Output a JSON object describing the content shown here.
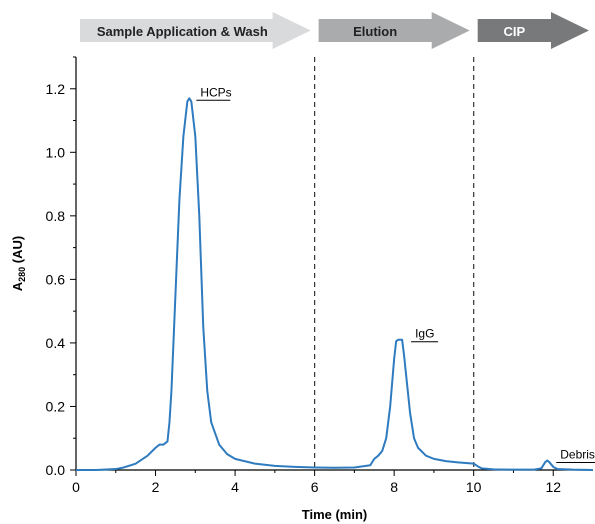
{
  "chart_data": {
    "type": "line",
    "xlabel": "Time (min)",
    "ylabel_main": "A",
    "ylabel_sub": "280",
    "ylabel_unit": " (AU)",
    "xlim": [
      0,
      13
    ],
    "ylim": [
      0,
      1.3
    ],
    "x_ticks": [
      0,
      2,
      4,
      6,
      8,
      10,
      12
    ],
    "x_tick_labels": [
      "0",
      "2",
      "4",
      "6",
      "8",
      "10",
      "12"
    ],
    "y_ticks": [
      0,
      0.2,
      0.4,
      0.6,
      0.8,
      1.0,
      1.2
    ],
    "y_tick_labels": [
      "0.0",
      "0.2",
      "0.4",
      "0.6",
      "0.8",
      "1.0",
      "1.2"
    ],
    "grid": false,
    "line_color": "#2f7bbf",
    "phases": [
      {
        "label": "Sample Application & Wash",
        "x_start": 0,
        "x_end": 6,
        "color": "#d9dadb",
        "text_color": "#222222"
      },
      {
        "label": "Elution",
        "x_start": 6,
        "x_end": 10,
        "color": "#a9abad",
        "text_color": "#222222"
      },
      {
        "label": "CIP",
        "x_start": 10,
        "x_end": 13,
        "color": "#77797b",
        "text_color": "#ffffff"
      }
    ],
    "phase_boundaries": [
      6,
      10
    ],
    "annotations": [
      {
        "text": "HCPs",
        "x": 2.9,
        "y": 1.17
      },
      {
        "text": "IgG",
        "x": 8.3,
        "y": 0.41
      },
      {
        "text": "Debris",
        "x": 11.95,
        "y": 0.03
      }
    ],
    "series": [
      {
        "x": [
          0,
          0.5,
          1.0,
          1.2,
          1.5,
          1.8,
          2.0,
          2.1,
          2.2,
          2.3,
          2.35,
          2.4,
          2.5,
          2.6,
          2.7,
          2.8,
          2.85,
          2.9,
          3.0,
          3.1,
          3.2,
          3.3,
          3.4,
          3.6,
          3.8,
          4.0,
          4.5,
          5.0,
          5.5,
          6.0,
          6.5,
          7.0,
          7.4,
          7.5,
          7.6,
          7.7,
          7.8,
          7.9,
          8.0,
          8.05,
          8.1,
          8.2,
          8.25,
          8.3,
          8.4,
          8.5,
          8.6,
          8.8,
          9.0,
          9.3,
          9.6,
          10.0,
          10.1,
          10.2,
          10.5,
          11.0,
          11.5,
          11.7,
          11.8,
          11.85,
          11.9,
          12.0,
          12.1,
          12.5,
          13.0
        ],
        "y": [
          0.0,
          0.0,
          0.003,
          0.008,
          0.02,
          0.045,
          0.07,
          0.08,
          0.08,
          0.09,
          0.15,
          0.25,
          0.55,
          0.85,
          1.05,
          1.16,
          1.17,
          1.16,
          1.05,
          0.8,
          0.45,
          0.25,
          0.15,
          0.08,
          0.05,
          0.035,
          0.02,
          0.013,
          0.01,
          0.008,
          0.007,
          0.008,
          0.015,
          0.035,
          0.045,
          0.06,
          0.1,
          0.2,
          0.35,
          0.405,
          0.41,
          0.41,
          0.36,
          0.3,
          0.18,
          0.1,
          0.07,
          0.045,
          0.035,
          0.028,
          0.024,
          0.02,
          0.012,
          0.005,
          0.002,
          0.001,
          0.001,
          0.005,
          0.025,
          0.03,
          0.025,
          0.01,
          0.003,
          0.001,
          0.0
        ]
      }
    ]
  }
}
